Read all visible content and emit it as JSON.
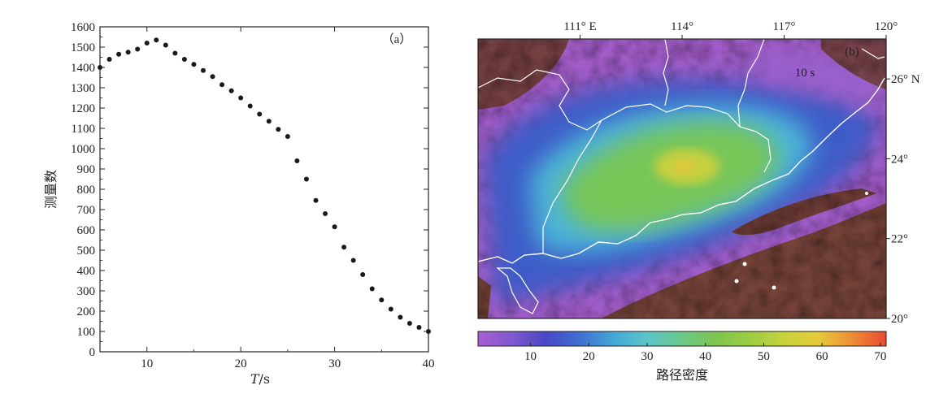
{
  "chart_data": [
    {
      "type": "scatter",
      "panel_label": "（a）",
      "xlabel_italic": "T",
      "xlabel_rest": "/s",
      "ylabel": "测量数",
      "xlim": [
        5,
        40
      ],
      "ylim": [
        0,
        1600
      ],
      "xticks": [
        10,
        20,
        30,
        40
      ],
      "yticks": [
        0,
        100,
        200,
        300,
        400,
        500,
        600,
        700,
        800,
        900,
        1000,
        1100,
        1200,
        1300,
        1400,
        1500,
        1600
      ],
      "grid": false,
      "marker_color": "#1a1a1a",
      "x": [
        5,
        6,
        7,
        8,
        9,
        10,
        11,
        12,
        13,
        14,
        15,
        16,
        17,
        18,
        19,
        20,
        21,
        22,
        23,
        24,
        25,
        26,
        27,
        28,
        29,
        30,
        31,
        32,
        33,
        34,
        35,
        36,
        37,
        38,
        39,
        40
      ],
      "y": [
        1400,
        1440,
        1465,
        1475,
        1490,
        1520,
        1535,
        1510,
        1470,
        1440,
        1415,
        1385,
        1355,
        1315,
        1285,
        1250,
        1210,
        1170,
        1135,
        1095,
        1060,
        940,
        850,
        745,
        680,
        615,
        515,
        450,
        380,
        310,
        255,
        210,
        170,
        140,
        120,
        100
      ]
    },
    {
      "type": "heatmap",
      "panel_label": "(b)",
      "period_label": "10 s",
      "colorbar_label": "路径密度",
      "colorbar_ticks": [
        10,
        20,
        30,
        40,
        50,
        60,
        70
      ],
      "colorbar_range": [
        1,
        71
      ],
      "colormap": [
        "#a85fd0",
        "#7f58cf",
        "#4848c6",
        "#3f6fd0",
        "#44a8d8",
        "#5cc6c8",
        "#6bc98a",
        "#7ec550",
        "#9ccd42",
        "#c8d23d",
        "#e6cb3a",
        "#ef8c36",
        "#e84a30"
      ],
      "lon_ticks": [
        "111° E",
        "114°",
        "117°",
        "120°"
      ],
      "lat_ticks": [
        "26° N",
        "24°",
        "22°",
        "20°"
      ],
      "lon_range": [
        108,
        120
      ],
      "lat_range": [
        20,
        27
      ]
    }
  ]
}
